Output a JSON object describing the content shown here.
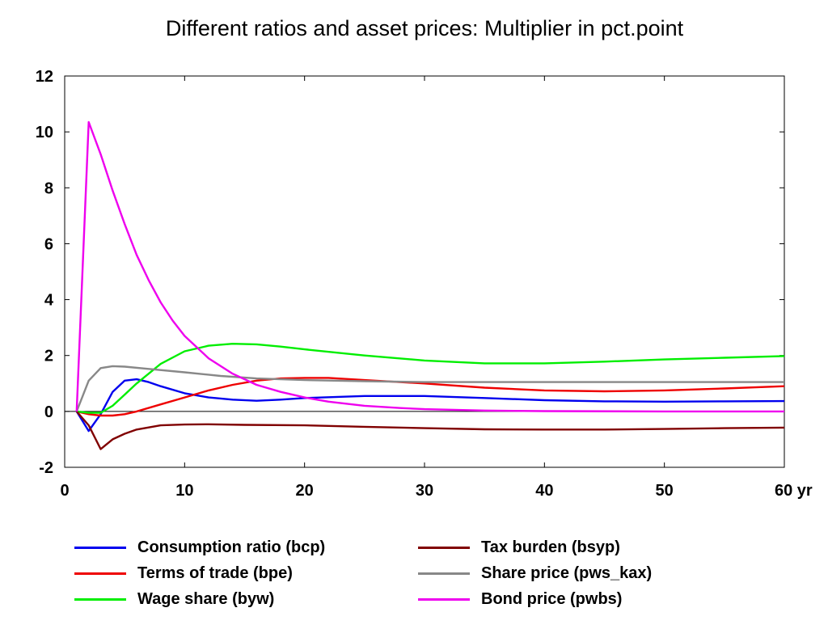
{
  "chart_data": {
    "type": "line",
    "title": "Different ratios and asset prices: Multiplier in pct.point",
    "xlabel": "",
    "ylabel": "",
    "xlim": [
      0,
      60
    ],
    "ylim": [
      -2,
      12
    ],
    "x_unit_label": "yr",
    "x_ticks": [
      0,
      10,
      20,
      30,
      40,
      50,
      60
    ],
    "x_tick_labels": [
      "0",
      "10",
      "20",
      "30",
      "40",
      "50",
      "60 yr"
    ],
    "y_ticks": [
      -2,
      0,
      2,
      4,
      6,
      8,
      10,
      12
    ],
    "y_tick_labels": [
      "-2",
      "0",
      "2",
      "4",
      "6",
      "8",
      "10",
      "12"
    ],
    "grid": false,
    "zero_line": true,
    "legend_position": "bottom",
    "series": [
      {
        "name": "Consumption ratio (bcp)",
        "color": "#0000ee",
        "points": [
          [
            1,
            0
          ],
          [
            2,
            -0.7
          ],
          [
            3,
            -0.1
          ],
          [
            4,
            0.7
          ],
          [
            5,
            1.1
          ],
          [
            6,
            1.15
          ],
          [
            7,
            1.05
          ],
          [
            8,
            0.9
          ],
          [
            10,
            0.65
          ],
          [
            12,
            0.5
          ],
          [
            14,
            0.42
          ],
          [
            16,
            0.38
          ],
          [
            18,
            0.42
          ],
          [
            20,
            0.48
          ],
          [
            25,
            0.55
          ],
          [
            30,
            0.55
          ],
          [
            35,
            0.48
          ],
          [
            40,
            0.4
          ],
          [
            45,
            0.36
          ],
          [
            50,
            0.35
          ],
          [
            55,
            0.36
          ],
          [
            60,
            0.37
          ]
        ]
      },
      {
        "name": "Terms of trade (bpe)",
        "color": "#ee0000",
        "points": [
          [
            1,
            0
          ],
          [
            2,
            -0.1
          ],
          [
            3,
            -0.15
          ],
          [
            4,
            -0.15
          ],
          [
            5,
            -0.1
          ],
          [
            6,
            0
          ],
          [
            8,
            0.25
          ],
          [
            10,
            0.5
          ],
          [
            12,
            0.75
          ],
          [
            14,
            0.95
          ],
          [
            16,
            1.1
          ],
          [
            18,
            1.18
          ],
          [
            20,
            1.2
          ],
          [
            22,
            1.2
          ],
          [
            25,
            1.12
          ],
          [
            30,
            1.0
          ],
          [
            35,
            0.85
          ],
          [
            40,
            0.75
          ],
          [
            45,
            0.72
          ],
          [
            50,
            0.75
          ],
          [
            55,
            0.82
          ],
          [
            60,
            0.9
          ]
        ]
      },
      {
        "name": "Wage share (byw)",
        "color": "#00ee00",
        "points": [
          [
            1,
            0
          ],
          [
            2,
            -0.05
          ],
          [
            3,
            -0.05
          ],
          [
            4,
            0.2
          ],
          [
            5,
            0.6
          ],
          [
            6,
            1.0
          ],
          [
            8,
            1.7
          ],
          [
            10,
            2.15
          ],
          [
            12,
            2.35
          ],
          [
            14,
            2.42
          ],
          [
            16,
            2.4
          ],
          [
            18,
            2.32
          ],
          [
            20,
            2.22
          ],
          [
            25,
            2.0
          ],
          [
            30,
            1.82
          ],
          [
            35,
            1.72
          ],
          [
            40,
            1.72
          ],
          [
            45,
            1.78
          ],
          [
            50,
            1.86
          ],
          [
            55,
            1.92
          ],
          [
            60,
            1.98
          ]
        ]
      },
      {
        "name": "Tax burden (bsyp)",
        "color": "#800000",
        "points": [
          [
            1,
            0
          ],
          [
            2,
            -0.5
          ],
          [
            3,
            -1.35
          ],
          [
            4,
            -1.0
          ],
          [
            5,
            -0.8
          ],
          [
            6,
            -0.65
          ],
          [
            8,
            -0.5
          ],
          [
            10,
            -0.47
          ],
          [
            12,
            -0.46
          ],
          [
            15,
            -0.48
          ],
          [
            20,
            -0.5
          ],
          [
            25,
            -0.55
          ],
          [
            30,
            -0.6
          ],
          [
            35,
            -0.64
          ],
          [
            40,
            -0.65
          ],
          [
            45,
            -0.65
          ],
          [
            50,
            -0.63
          ],
          [
            55,
            -0.6
          ],
          [
            60,
            -0.58
          ]
        ]
      },
      {
        "name": "Share price (pws_kax)",
        "color": "#888888",
        "points": [
          [
            1,
            0
          ],
          [
            2,
            1.1
          ],
          [
            3,
            1.55
          ],
          [
            4,
            1.62
          ],
          [
            5,
            1.6
          ],
          [
            7,
            1.52
          ],
          [
            10,
            1.4
          ],
          [
            13,
            1.27
          ],
          [
            16,
            1.18
          ],
          [
            20,
            1.12
          ],
          [
            25,
            1.08
          ],
          [
            30,
            1.05
          ],
          [
            40,
            1.05
          ],
          [
            50,
            1.05
          ],
          [
            60,
            1.05
          ]
        ]
      },
      {
        "name": "Bond price (pwbs)",
        "color": "#ee00ee",
        "points": [
          [
            1,
            0
          ],
          [
            2,
            10.35
          ],
          [
            3,
            9.2
          ],
          [
            4,
            7.9
          ],
          [
            5,
            6.7
          ],
          [
            6,
            5.6
          ],
          [
            7,
            4.7
          ],
          [
            8,
            3.9
          ],
          [
            9,
            3.25
          ],
          [
            10,
            2.7
          ],
          [
            12,
            1.9
          ],
          [
            14,
            1.35
          ],
          [
            16,
            0.95
          ],
          [
            18,
            0.7
          ],
          [
            20,
            0.5
          ],
          [
            22,
            0.35
          ],
          [
            25,
            0.2
          ],
          [
            28,
            0.12
          ],
          [
            30,
            0.08
          ],
          [
            35,
            0.03
          ],
          [
            40,
            0.01
          ],
          [
            50,
            0
          ],
          [
            60,
            0
          ]
        ]
      }
    ]
  }
}
